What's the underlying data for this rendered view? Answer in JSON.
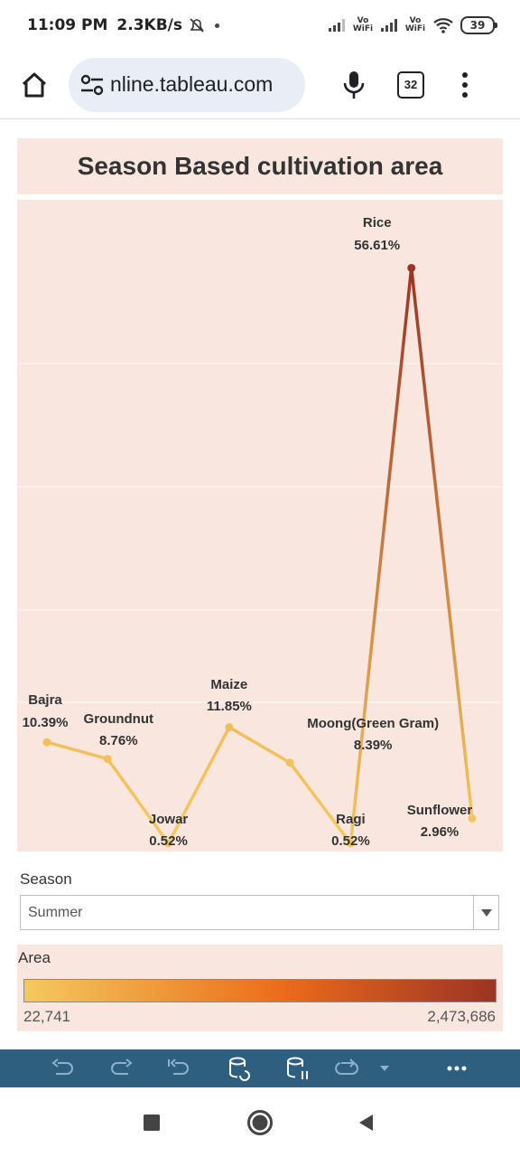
{
  "status_bar": {
    "time": "11:09 PM",
    "speed": "2.3KB/s",
    "vowifi_1": "Vo WiFi",
    "vowifi_2": "Vo WiFi",
    "battery": "39"
  },
  "browser": {
    "url": "nline.tableau.com",
    "tab_count": "32"
  },
  "viz": {
    "title": "Season Based cultivation area"
  },
  "chart_data": {
    "type": "line",
    "title": "Season Based cultivation area",
    "categories": [
      "Bajra",
      "Groundnut",
      "Jowar",
      "Maize",
      "Moong(Green Gram)",
      "Ragi",
      "Rice",
      "Sunflower"
    ],
    "values": [
      10.39,
      8.76,
      0.52,
      11.85,
      8.39,
      0.52,
      56.61,
      2.96
    ],
    "value_labels": [
      "10.39%",
      "8.76%",
      "0.52%",
      "11.85%",
      "8.39%",
      "0.52%",
      "56.61%",
      "2.96%"
    ],
    "color_encoding": "Area",
    "colors": {
      "low": "#f4c95d",
      "mid": "#ec6b1b",
      "high": "#9c3323"
    },
    "grid": true,
    "ylim": [
      0,
      60
    ]
  },
  "filter": {
    "label": "Season",
    "value": "Summer"
  },
  "legend": {
    "title": "Area",
    "min": "22,741",
    "max": "2,473,686"
  }
}
